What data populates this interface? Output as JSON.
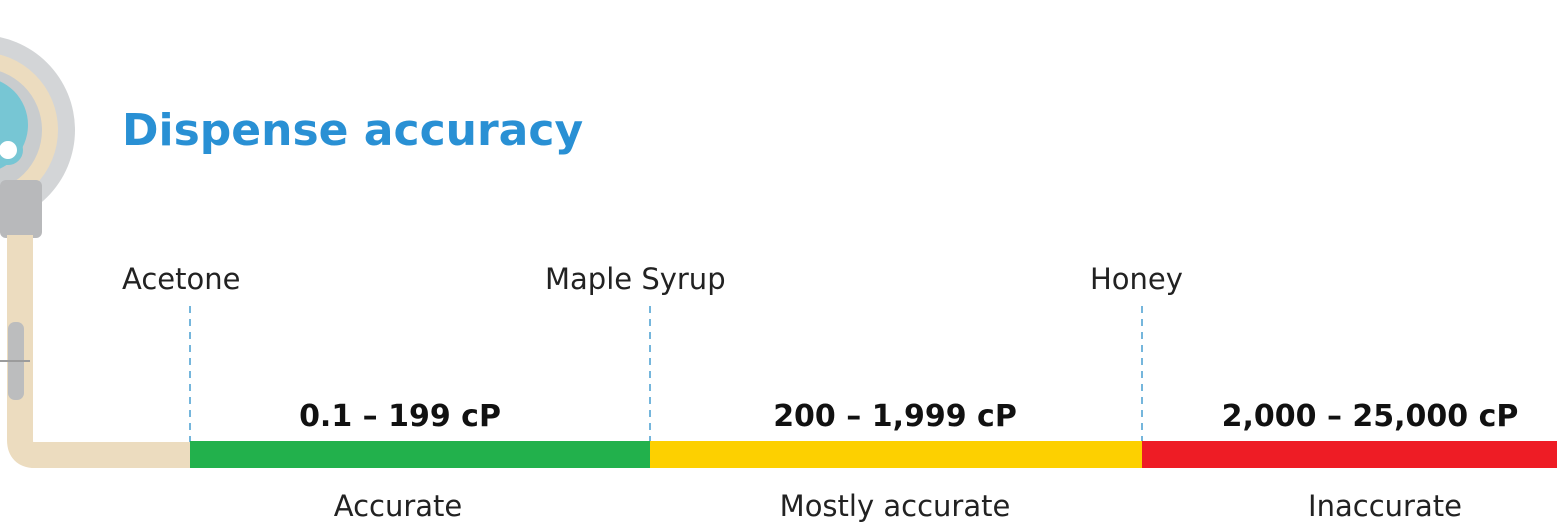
{
  "header": {
    "title": "Dispense accuracy"
  },
  "markers": [
    {
      "label": "Acetone"
    },
    {
      "label": "Maple Syrup"
    },
    {
      "label": "Honey"
    }
  ],
  "segments": [
    {
      "range": "0.1 – 199 cP",
      "label": "Accurate",
      "color": "#22b14c"
    },
    {
      "range": "200 – 1,999 cP",
      "label": "Mostly accurate",
      "color": "#fdd000"
    },
    {
      "range": "2,000 – 25,000 cP",
      "label": "Inaccurate",
      "color": "#ee1c25"
    }
  ]
}
